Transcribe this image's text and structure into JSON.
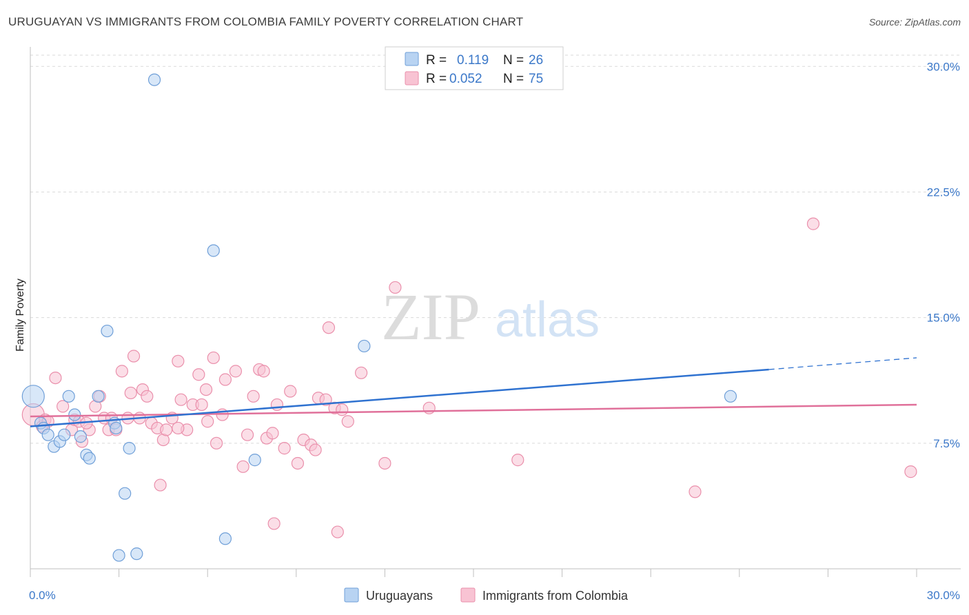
{
  "header": {
    "title": "URUGUAYAN VS IMMIGRANTS FROM COLOMBIA FAMILY POVERTY CORRELATION CHART",
    "source": "Source: ZipAtlas.com"
  },
  "watermark": {
    "zip": "ZIP",
    "atlas": "atlas"
  },
  "colors": {
    "blue_fill": "#b8d3f2",
    "blue_stroke": "#6f9fd8",
    "blue_line": "#2f72d0",
    "pink_fill": "#f8c3d3",
    "pink_stroke": "#ea8fab",
    "pink_line": "#e0709a",
    "label_blue": "#3b78c9",
    "grid": "#d9d9d9"
  },
  "chart_data": {
    "type": "scatter",
    "title": "URUGUAYAN VS IMMIGRANTS FROM COLOMBIA FAMILY POVERTY CORRELATION CHART",
    "xlabel": "",
    "ylabel": "Family Poverty",
    "xlim": [
      0,
      30
    ],
    "ylim": [
      0,
      31
    ],
    "x_tick_labels": [
      "0.0%",
      "30.0%"
    ],
    "y_ticks": [
      7.5,
      15.0,
      22.5,
      30.0
    ],
    "y_tick_labels": [
      "7.5%",
      "15.0%",
      "22.5%",
      "30.0%"
    ],
    "grid": true,
    "legend": {
      "placement": "top-center",
      "entries": [
        {
          "r_label": "R =",
          "r_value": "0.119",
          "n_label": "N =",
          "n_value": "26"
        },
        {
          "r_label": "R =",
          "r_value": "0.052",
          "n_label": "N =",
          "n_value": "75"
        }
      ]
    },
    "bottom_legend": [
      "Uruguayans",
      "Immigrants from Colombia"
    ],
    "series": [
      {
        "name": "Uruguayans",
        "r": 0.119,
        "n": 26,
        "trend": {
          "x": [
            0,
            25
          ],
          "y": [
            8.5,
            11.9
          ]
        },
        "trend_extension": {
          "x": [
            25,
            30
          ],
          "y": [
            11.9,
            12.6
          ]
        },
        "points": [
          [
            0.1,
            10.3,
            "large"
          ],
          [
            0.35,
            8.7
          ],
          [
            0.45,
            8.4
          ],
          [
            0.6,
            8.0
          ],
          [
            0.8,
            7.3
          ],
          [
            1.0,
            7.6
          ],
          [
            1.15,
            8.0
          ],
          [
            1.3,
            10.3
          ],
          [
            1.5,
            9.2
          ],
          [
            1.7,
            7.9
          ],
          [
            1.9,
            6.8
          ],
          [
            2.0,
            6.6
          ],
          [
            2.3,
            10.3
          ],
          [
            2.6,
            14.2
          ],
          [
            2.85,
            8.7
          ],
          [
            2.9,
            8.4
          ],
          [
            3.0,
            0.8
          ],
          [
            3.2,
            4.5
          ],
          [
            3.35,
            7.2
          ],
          [
            3.6,
            0.9
          ],
          [
            4.2,
            29.2
          ],
          [
            6.2,
            19.0
          ],
          [
            6.6,
            1.8
          ],
          [
            7.6,
            6.5
          ],
          [
            11.3,
            13.3
          ],
          [
            23.7,
            10.3
          ]
        ]
      },
      {
        "name": "Immigrants from Colombia",
        "r": 0.052,
        "n": 75,
        "trend": {
          "x": [
            0,
            30
          ],
          "y": [
            9.1,
            9.8
          ]
        },
        "points": [
          [
            0.1,
            9.2,
            "large"
          ],
          [
            0.4,
            8.5
          ],
          [
            0.5,
            8.9
          ],
          [
            0.6,
            8.8
          ],
          [
            0.85,
            11.4
          ],
          [
            1.1,
            9.7
          ],
          [
            1.4,
            8.3
          ],
          [
            1.5,
            8.9
          ],
          [
            1.65,
            8.8
          ],
          [
            1.75,
            7.6
          ],
          [
            2.0,
            8.3
          ],
          [
            2.2,
            9.7
          ],
          [
            2.35,
            10.3
          ],
          [
            2.5,
            9.0
          ],
          [
            2.65,
            8.3
          ],
          [
            2.75,
            9.0
          ],
          [
            2.9,
            8.3
          ],
          [
            3.1,
            11.8
          ],
          [
            3.4,
            10.5
          ],
          [
            3.5,
            12.7
          ],
          [
            3.7,
            9.0
          ],
          [
            3.8,
            10.7
          ],
          [
            3.95,
            10.3
          ],
          [
            4.1,
            8.7
          ],
          [
            4.3,
            8.4
          ],
          [
            4.4,
            5.0
          ],
          [
            4.5,
            7.7
          ],
          [
            4.6,
            8.3
          ],
          [
            4.8,
            9.0
          ],
          [
            5.0,
            12.4
          ],
          [
            5.1,
            10.1
          ],
          [
            5.3,
            8.3
          ],
          [
            5.5,
            9.8
          ],
          [
            5.7,
            11.6
          ],
          [
            5.8,
            9.8
          ],
          [
            5.95,
            10.7
          ],
          [
            6.2,
            12.6
          ],
          [
            6.3,
            7.5
          ],
          [
            6.5,
            9.2
          ],
          [
            6.6,
            11.3
          ],
          [
            6.95,
            11.8
          ],
          [
            7.2,
            6.1
          ],
          [
            7.35,
            8.0
          ],
          [
            7.55,
            10.3
          ],
          [
            7.75,
            11.9
          ],
          [
            7.9,
            11.8
          ],
          [
            8.0,
            7.8
          ],
          [
            8.2,
            8.1
          ],
          [
            8.25,
            2.7
          ],
          [
            8.35,
            9.8
          ],
          [
            8.6,
            7.2
          ],
          [
            8.8,
            10.6
          ],
          [
            9.05,
            6.3
          ],
          [
            9.25,
            7.7
          ],
          [
            9.5,
            7.4
          ],
          [
            9.65,
            7.1
          ],
          [
            9.75,
            10.2
          ],
          [
            10.0,
            10.1
          ],
          [
            10.1,
            14.4
          ],
          [
            10.3,
            9.6
          ],
          [
            10.4,
            2.2
          ],
          [
            10.55,
            9.5
          ],
          [
            10.75,
            8.8
          ],
          [
            11.2,
            11.7
          ],
          [
            12.0,
            6.3
          ],
          [
            12.35,
            16.8
          ],
          [
            13.5,
            9.6
          ],
          [
            16.5,
            6.5
          ],
          [
            22.5,
            4.6
          ],
          [
            26.5,
            20.6
          ],
          [
            29.8,
            5.8
          ],
          [
            1.9,
            8.7
          ],
          [
            3.3,
            9.0
          ],
          [
            5.0,
            8.4
          ],
          [
            6.0,
            8.8
          ]
        ]
      }
    ]
  }
}
